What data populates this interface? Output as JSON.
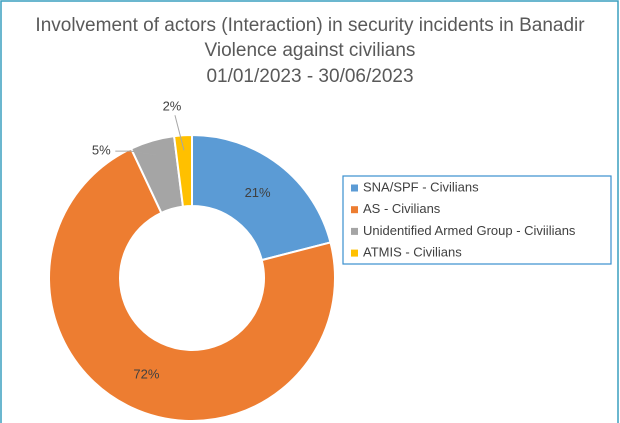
{
  "chart_data": {
    "type": "donut",
    "title": "Involvement of actors (Interaction) in security incidents in Banadir",
    "subtitle": "Violence against civilians",
    "date_range": "01/01/2023 - 30/06/2023",
    "categories": [
      "SNA/SPF - Civilians",
      "AS - Civilians",
      "Unidentified Armed Group - Civiilians",
      "ATMIS - Civilians"
    ],
    "values": [
      21,
      72,
      5,
      2
    ],
    "value_labels": [
      "21%",
      "72%",
      "5%",
      "2%"
    ],
    "colors": [
      "#5b9bd5",
      "#ed7d31",
      "#a5a5a5",
      "#ffc000"
    ],
    "legend": "right"
  }
}
